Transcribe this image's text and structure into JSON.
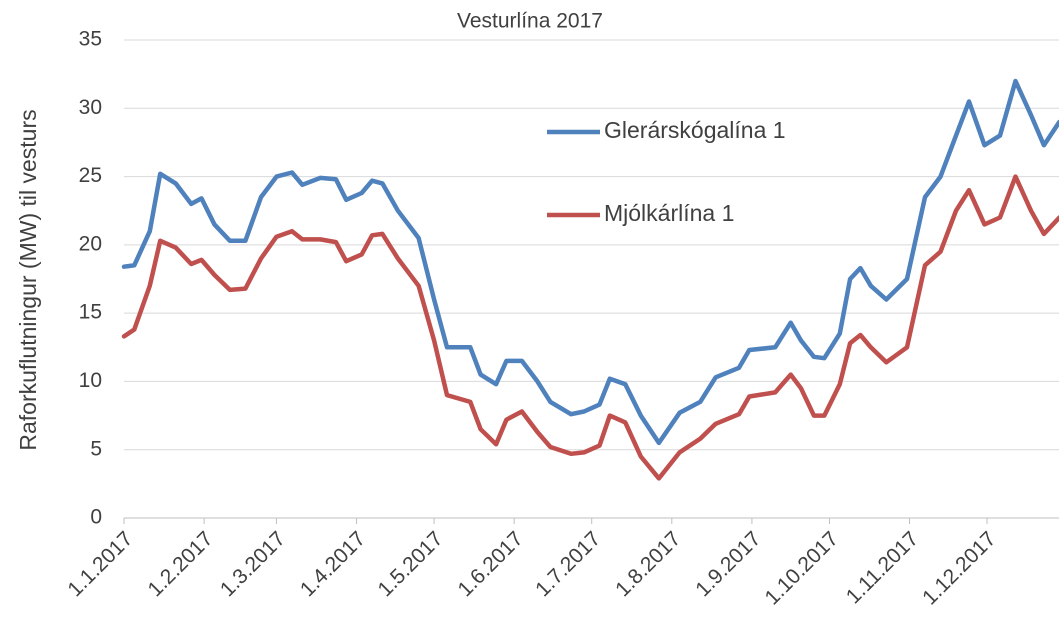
{
  "chart_data": {
    "type": "line",
    "title": "Vesturlína 2017",
    "y_label": "Raforkuflutningur (MW) til vesturs",
    "x": [
      "1.1.2017",
      "5.1.2017",
      "11.1.2017",
      "15.1.2017",
      "21.1.2017",
      "27.1.2017",
      "31.1.2017",
      "5.2.2017",
      "11.2.2017",
      "17.2.2017",
      "23.2.2017",
      "1.3.2017",
      "7.3.2017",
      "11.3.2017",
      "18.3.2017",
      "24.3.2017",
      "28.3.2017",
      "3.4.2017",
      "7.4.2017",
      "11.4.2017",
      "17.4.2017",
      "25.4.2017",
      "1.5.2017",
      "6.5.2017",
      "15.5.2017",
      "19.5.2017",
      "25.5.2017",
      "29.5.2017",
      "4.6.2017",
      "10.6.2017",
      "15.6.2017",
      "23.6.2017",
      "28.6.2017",
      "4.7.2017",
      "8.7.2017",
      "14.7.2017",
      "20.7.2017",
      "27.7.2017",
      "4.8.2017",
      "12.8.2017",
      "18.8.2017",
      "27.8.2017",
      "31.8.2017",
      "10.9.2017",
      "16.9.2017",
      "20.9.2017",
      "25.9.2017",
      "29.9.2017",
      "5.10.2017",
      "9.10.2017",
      "13.10.2017",
      "17.10.2017",
      "23.10.2017",
      "31.10.2017",
      "7.11.2017",
      "13.11.2017",
      "19.11.2017",
      "24.11.2017",
      "30.11.2017",
      "6.12.2017",
      "12.12.2017",
      "18.12.2017",
      "23.12.2017",
      "29.12.2017"
    ],
    "series": [
      {
        "name": "Glerárskógalína 1",
        "color": "#4f81bd",
        "values": [
          18.4,
          18.5,
          21,
          25.2,
          24.5,
          23,
          23.4,
          21.5,
          20.3,
          20.3,
          23.5,
          25,
          25.3,
          24.4,
          24.9,
          24.8,
          23.3,
          23.8,
          24.7,
          24.5,
          22.5,
          20.5,
          16,
          12.5,
          12.5,
          10.5,
          9.8,
          11.5,
          11.5,
          10,
          8.5,
          7.6,
          7.8,
          8.3,
          10.2,
          9.8,
          7.5,
          5.5,
          7.7,
          8.5,
          10.3,
          11,
          12.3,
          12.5,
          14.3,
          13,
          11.8,
          11.7,
          13.5,
          17.5,
          18.3,
          17,
          16,
          17.5,
          23.5,
          25,
          28,
          30.5,
          27.3,
          28,
          32,
          29.5,
          27.3,
          29
        ]
      },
      {
        "name": "Mjólkárlína 1",
        "color": "#c0504d",
        "values": [
          13.3,
          13.8,
          17,
          20.3,
          19.8,
          18.6,
          18.9,
          17.8,
          16.7,
          16.8,
          19,
          20.6,
          21,
          20.4,
          20.4,
          20.2,
          18.8,
          19.3,
          20.7,
          20.8,
          19,
          17,
          13,
          9,
          8.5,
          6.5,
          5.4,
          7.2,
          7.8,
          6.3,
          5.2,
          4.7,
          4.8,
          5.3,
          7.5,
          7,
          4.5,
          2.9,
          4.8,
          5.8,
          6.9,
          7.6,
          8.9,
          9.2,
          10.5,
          9.5,
          7.5,
          7.5,
          9.8,
          12.8,
          13.4,
          12.5,
          11.4,
          12.5,
          18.5,
          19.5,
          22.5,
          24,
          21.5,
          22,
          25,
          22.5,
          20.8,
          22
        ]
      }
    ],
    "xlim": [
      "1.1.2017",
      "31.12.2017"
    ],
    "xticks": [
      "1.1.2017",
      "1.2.2017",
      "1.3.2017",
      "1.4.2017",
      "1.5.2017",
      "1.6.2017",
      "1.7.2017",
      "1.8.2017",
      "1.9.2017",
      "1.10.2017",
      "1.11.2017",
      "1.12.2017"
    ],
    "ylim": [
      0,
      35
    ],
    "yticks": [
      0,
      5,
      10,
      15,
      20,
      25,
      30,
      35
    ],
    "grid": true
  }
}
